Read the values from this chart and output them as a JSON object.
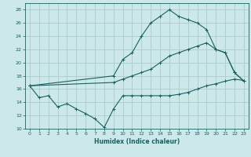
{
  "xlabel": "Humidex (Indice chaleur)",
  "background_color": "#cce8e8",
  "grid_color": "#aacccc",
  "line_color": "#1a6060",
  "xlim": [
    -0.5,
    23.5
  ],
  "ylim": [
    10,
    29
  ],
  "xticks": [
    0,
    1,
    2,
    3,
    4,
    5,
    6,
    7,
    8,
    9,
    10,
    11,
    12,
    13,
    14,
    15,
    16,
    17,
    18,
    19,
    20,
    21,
    22,
    23
  ],
  "yticks": [
    10,
    12,
    14,
    16,
    18,
    20,
    22,
    24,
    26,
    28
  ],
  "line1_x": [
    0,
    1,
    2,
    3,
    4,
    5,
    6,
    7,
    8,
    9,
    10,
    11,
    12,
    13,
    14,
    15,
    16,
    17,
    18,
    19,
    20,
    21,
    22,
    23
  ],
  "line1_y": [
    16.5,
    14.7,
    15.0,
    13.3,
    13.8,
    13.0,
    12.3,
    11.5,
    10.2,
    13.0,
    15.0,
    15.0,
    15.0,
    15.0,
    15.0,
    15.0,
    15.2,
    15.5,
    16.0,
    16.5,
    16.8,
    17.2,
    17.5,
    17.3
  ],
  "line2_x": [
    0,
    9,
    10,
    11,
    12,
    13,
    14,
    15,
    16,
    17,
    18,
    19,
    20,
    21,
    22,
    23
  ],
  "line2_y": [
    16.5,
    18.0,
    20.5,
    21.5,
    24.0,
    26.0,
    27.0,
    28.0,
    27.0,
    26.5,
    26.0,
    25.0,
    22.0,
    21.5,
    18.5,
    17.2
  ],
  "line3_x": [
    0,
    9,
    10,
    11,
    12,
    13,
    14,
    15,
    16,
    17,
    18,
    19,
    20,
    21,
    22,
    23
  ],
  "line3_y": [
    16.5,
    17.0,
    17.5,
    18.0,
    18.5,
    19.0,
    20.0,
    21.0,
    21.5,
    22.0,
    22.5,
    23.0,
    22.0,
    21.5,
    18.5,
    17.2
  ],
  "xlabel_fontsize": 5.5,
  "tick_fontsize": 4.5,
  "lw": 0.8,
  "ms": 2.5
}
